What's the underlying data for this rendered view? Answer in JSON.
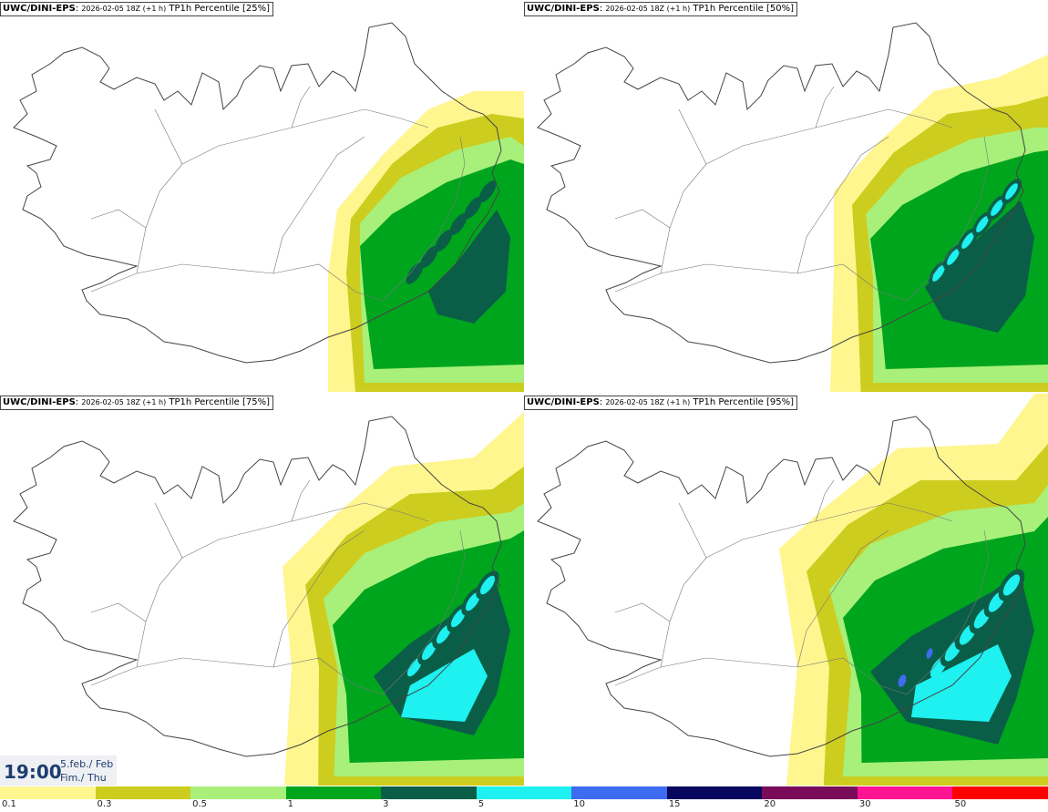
{
  "panels": [
    {
      "model": "UWC/DINI-EPS",
      "run": "2026-02-05 18Z (+1 h)",
      "label": "TP1h Percentile [25%]"
    },
    {
      "model": "UWC/DINI-EPS",
      "run": "2026-02-05 18Z (+1 h)",
      "label": "TP1h Percentile [50%]"
    },
    {
      "model": "UWC/DINI-EPS",
      "run": "2026-02-05 18Z (+1 h)",
      "label": "TP1h Percentile [75%]"
    },
    {
      "model": "UWC/DINI-EPS",
      "run": "2026-02-05 18Z (+1 h)",
      "label": "TP1h Percentile [95%]"
    }
  ],
  "valid_time": {
    "time": "19:00",
    "date": "5.feb./ Feb",
    "day": "Fim./ Thu"
  },
  "legend": {
    "ticks": [
      "0.1",
      "0.3",
      "0.5",
      "1",
      "3",
      "5",
      "10",
      "15",
      "20",
      "30",
      "50"
    ],
    "colors": [
      "#fff68f",
      "#cdcd1f",
      "#a8f07a",
      "#00a51e",
      "#0a5e48",
      "#1ff0f0",
      "#3d6cf0",
      "#07075e",
      "#7a0a5a",
      "#ff1493",
      "#ff0000"
    ]
  }
}
